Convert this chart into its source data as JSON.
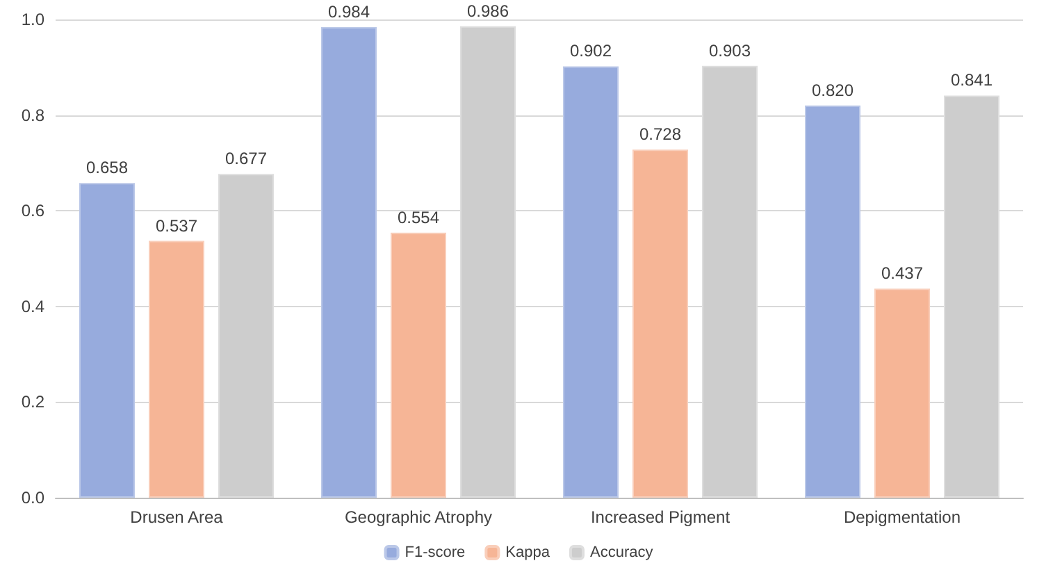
{
  "chart_data": {
    "type": "bar",
    "categories": [
      "Drusen Area",
      "Geographic Atrophy",
      "Increased Pigment",
      "Depigmentation"
    ],
    "series": [
      {
        "name": "F1-score",
        "color": "#97abdd",
        "values": [
          0.658,
          0.984,
          0.902,
          0.82
        ],
        "value_labels": [
          "0.658",
          "0.984",
          "0.902",
          "0.820"
        ]
      },
      {
        "name": "Kappa",
        "color": "#f6b596",
        "values": [
          0.537,
          0.554,
          0.728,
          0.437
        ],
        "value_labels": [
          "0.537",
          "0.554",
          "0.728",
          "0.437"
        ]
      },
      {
        "name": "Accuracy",
        "color": "#cdcdcd",
        "values": [
          0.677,
          0.986,
          0.903,
          0.841
        ],
        "value_labels": [
          "0.677",
          "0.986",
          "0.903",
          "0.841"
        ]
      }
    ],
    "ylim": [
      0,
      1
    ],
    "yticks": [
      {
        "value": 0,
        "label": "0.0"
      },
      {
        "value": 0.2,
        "label": "0.2"
      },
      {
        "value": 0.4,
        "label": "0.4"
      },
      {
        "value": 0.6,
        "label": "0.6"
      },
      {
        "value": 0.8,
        "label": "0.8"
      },
      {
        "value": 1,
        "label": "1.0"
      }
    ],
    "grid": "y",
    "legend": "bottom"
  }
}
